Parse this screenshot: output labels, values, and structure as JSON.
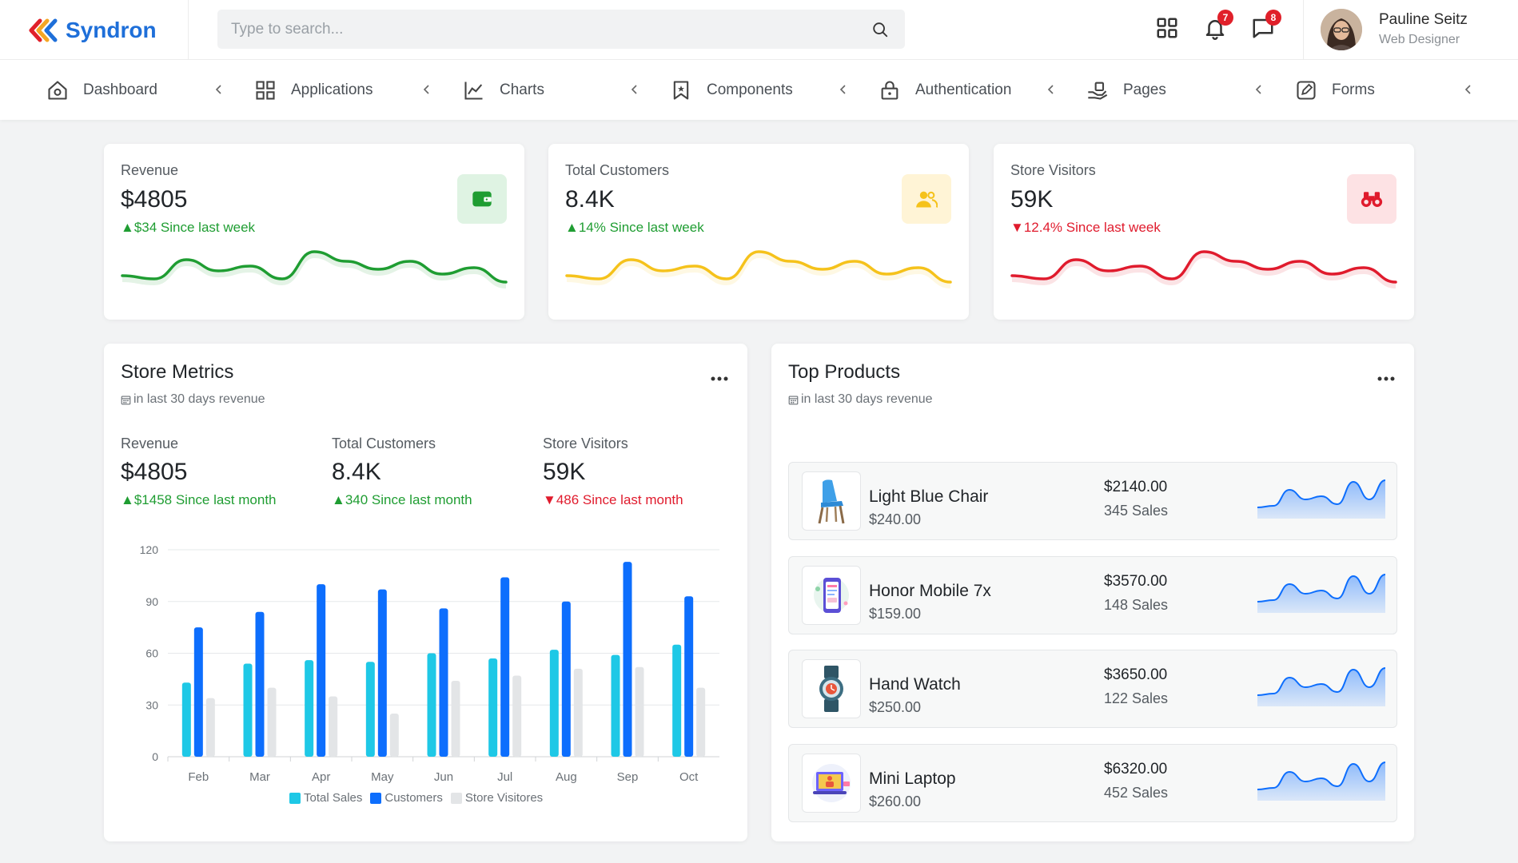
{
  "header": {
    "brand": "Syndron",
    "search_placeholder": "Type to search...",
    "notifications_count": "7",
    "messages_count": "8",
    "user": {
      "name": "Pauline Seitz",
      "role": "Web Designer"
    },
    "icons": [
      "logo-chevrons-icon",
      "search-icon",
      "apps-grid-icon",
      "bell-icon",
      "chat-icon"
    ]
  },
  "nav": {
    "items": [
      {
        "label": "Dashboard",
        "icon": "home-icon"
      },
      {
        "label": "Applications",
        "icon": "grid-icon"
      },
      {
        "label": "Charts",
        "icon": "line-chart-icon"
      },
      {
        "label": "Components",
        "icon": "bookmark-icon"
      },
      {
        "label": "Authentication",
        "icon": "lock-icon"
      },
      {
        "label": "Pages",
        "icon": "hand-icon"
      },
      {
        "label": "Forms",
        "icon": "edit-icon"
      }
    ]
  },
  "stats": [
    {
      "label": "Revenue",
      "value": "$4805",
      "trend": "$34 Since last week",
      "direction": "up",
      "color": "#1f9d32",
      "icon": "wallet-icon",
      "spark": [
        42,
        46,
        22,
        36,
        30,
        46,
        12,
        24,
        34,
        24,
        40,
        32,
        50
      ]
    },
    {
      "label": "Total Customers",
      "value": "8.4K",
      "trend": "14% Since last week",
      "direction": "up",
      "color": "#f5c21b",
      "icon": "users-icon",
      "spark": [
        42,
        46,
        22,
        36,
        30,
        46,
        12,
        24,
        34,
        24,
        40,
        32,
        50
      ]
    },
    {
      "label": "Store Visitors",
      "value": "59K",
      "trend": "12.4% Since last week",
      "direction": "down",
      "color": "#e01b2d",
      "icon": "binoculars-icon",
      "spark": [
        42,
        46,
        22,
        36,
        30,
        46,
        12,
        24,
        34,
        24,
        40,
        32,
        50
      ]
    }
  ],
  "store_metrics": {
    "title": "Store Metrics",
    "subtitle": "in last 30 days revenue",
    "metrics": [
      {
        "label": "Revenue",
        "value": "$4805",
        "trend": "$1458 Since last month",
        "direction": "up"
      },
      {
        "label": "Total Customers",
        "value": "8.4K",
        "trend": "340 Since last month",
        "direction": "up"
      },
      {
        "label": "Store Visitors",
        "value": "59K",
        "trend": "486 Since last month",
        "direction": "down"
      }
    ]
  },
  "chart_data": {
    "type": "bar",
    "categories": [
      "Feb",
      "Mar",
      "Apr",
      "May",
      "Jun",
      "Jul",
      "Aug",
      "Sep",
      "Oct"
    ],
    "series": [
      {
        "name": "Total Sales",
        "color": "#1ec8e6",
        "values": [
          43,
          54,
          56,
          55,
          60,
          57,
          62,
          59,
          65
        ]
      },
      {
        "name": "Customers",
        "color": "#0d6efd",
        "values": [
          75,
          84,
          100,
          97,
          86,
          104,
          90,
          113,
          93
        ]
      },
      {
        "name": "Store Visitores",
        "color": "#e3e5e7",
        "values": [
          34,
          40,
          35,
          25,
          44,
          47,
          51,
          52,
          40
        ]
      }
    ],
    "yticks": [
      0,
      30,
      60,
      90,
      120
    ],
    "ylim": [
      0,
      120
    ],
    "grid": true,
    "legend": "bottom"
  },
  "top_products": {
    "title": "Top Products",
    "subtitle": "in last 30 days revenue",
    "items": [
      {
        "name": "Light Blue Chair",
        "price": "$240.00",
        "total": "$2140.00",
        "sales": "345 Sales",
        "icon": "chair-icon"
      },
      {
        "name": "Honor Mobile 7x",
        "price": "$159.00",
        "total": "$3570.00",
        "sales": "148 Sales",
        "icon": "mobile-icon"
      },
      {
        "name": "Hand Watch",
        "price": "$250.00",
        "total": "$3650.00",
        "sales": "122 Sales",
        "icon": "watch-icon"
      },
      {
        "name": "Mini Laptop",
        "price": "$260.00",
        "total": "$6320.00",
        "sales": "452 Sales",
        "icon": "laptop-icon"
      }
    ],
    "spark": [
      40,
      38,
      18,
      30,
      26,
      36,
      8,
      30,
      6
    ]
  }
}
